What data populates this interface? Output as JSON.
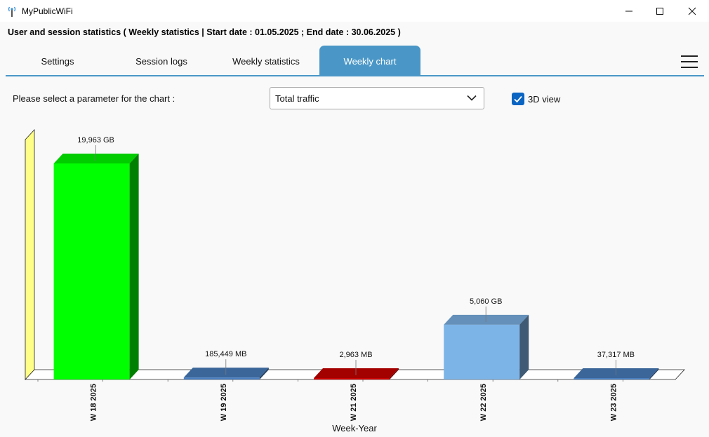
{
  "window": {
    "title": "MyPublicWiFi",
    "icon": "wifi-antenna-icon"
  },
  "header": {
    "title": "User and session statistics ( Weekly statistics | Start date : 01.05.2025 ; End date : 30.06.2025 )"
  },
  "tabs": [
    {
      "label": "Settings",
      "active": false
    },
    {
      "label": "Session logs",
      "active": false
    },
    {
      "label": "Weekly statistics",
      "active": false
    },
    {
      "label": "Weekly chart",
      "active": true
    }
  ],
  "controls": {
    "parameter_label": "Please select a parameter for the chart :",
    "parameter_value": "Total traffic",
    "view3d_label": "3D view",
    "view3d_checked": true
  },
  "colors": {
    "accent": "#4a97c7",
    "checkbox": "#0a64c2"
  },
  "chart_data": {
    "type": "bar",
    "style": "3d",
    "categories": [
      "W 18 2025",
      "W 19 2025",
      "W 21 2025",
      "W 22 2025",
      "W 23 2025"
    ],
    "values_gb": [
      19.963,
      0.185449,
      0.002963,
      5.06,
      0.037317
    ],
    "data_labels": [
      "19,963 GB",
      "185,449 MB",
      "2,963 MB",
      "5,060 GB",
      "37,317 MB"
    ],
    "colors": [
      "#00ff00",
      "#4a80c0",
      "#cc0000",
      "#7db4e8",
      "#4a80c0"
    ],
    "xlabel": "Week-Year",
    "ylabel": "",
    "grid": false,
    "legend": false
  }
}
